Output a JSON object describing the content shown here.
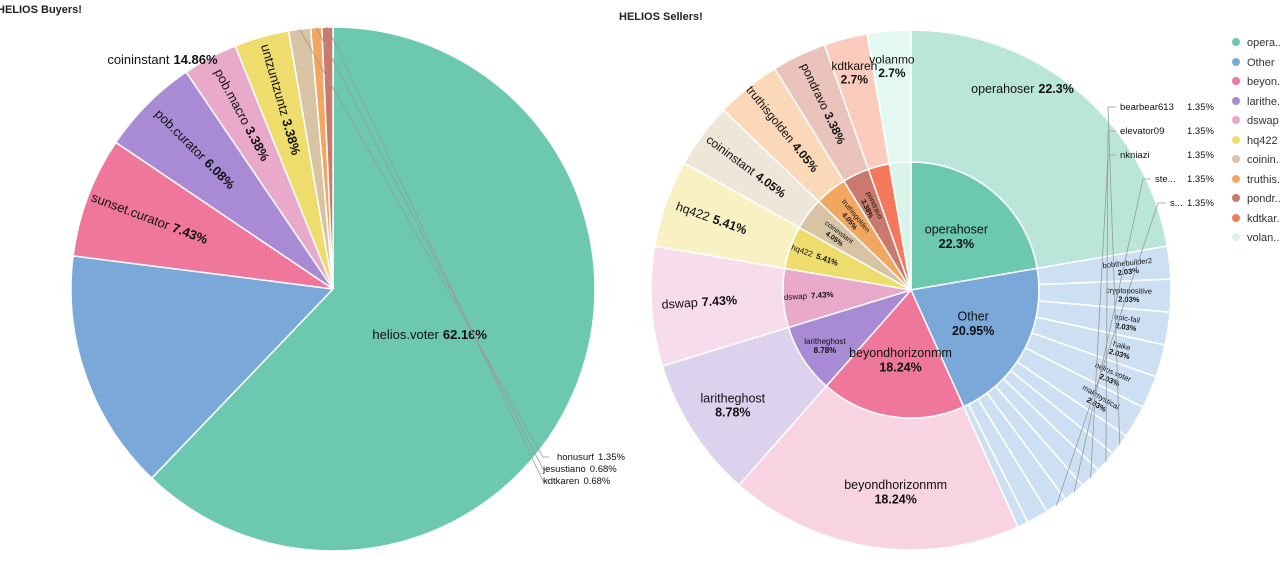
{
  "chart_data": [
    {
      "type": "pie",
      "title": "HELIOS Buyers!",
      "slices": [
        {
          "label": "helios.voter",
          "value": 62.16,
          "color": "#6cc9b0"
        },
        {
          "label": "coininstant",
          "value": 14.86,
          "color": "#7aa8d9"
        },
        {
          "label": "sunset.curator",
          "value": 7.43,
          "color": "#ef779b"
        },
        {
          "label": "pob.curator",
          "value": 6.08,
          "color": "#a98bd5"
        },
        {
          "label": "pob.macro",
          "value": 3.38,
          "color": "#e8a9cb"
        },
        {
          "label": "untzuntzuntz",
          "value": 3.38,
          "color": "#eedc6c"
        },
        {
          "label": "honusurf",
          "value": 1.35,
          "color": "#d8c3a4"
        },
        {
          "label": "jesustiano",
          "value": 0.68,
          "color": "#f2a760"
        },
        {
          "label": "kdtkaren",
          "value": 0.68,
          "color": "#c97a6d"
        }
      ]
    },
    {
      "type": "sunburst",
      "title": "HELIOS Sellers!",
      "inner": [
        {
          "label": "operahoser",
          "value": 22.3,
          "color": "#6cc9b0"
        },
        {
          "label": "Other",
          "value": 20.95,
          "color": "#7aa8d9"
        },
        {
          "label": "beyondhorizonmm",
          "value": 18.24,
          "color": "#ef779b"
        },
        {
          "label": "laritheghost",
          "value": 8.78,
          "color": "#a98bd5"
        },
        {
          "label": "dswap",
          "value": 7.43,
          "color": "#e8a9cb"
        },
        {
          "label": "hq422",
          "value": 5.41,
          "color": "#eedc6c"
        },
        {
          "label": "coininstant",
          "value": 4.05,
          "color": "#d8c3a4"
        },
        {
          "label": "truthisgolden",
          "value": 4.05,
          "color": "#f2a760"
        },
        {
          "label": "pondravo",
          "value": 3.38,
          "color": "#c97a6d"
        },
        {
          "label": "kdtkaren",
          "value": 2.7,
          "color": "#f4795c"
        },
        {
          "label": "volanmo",
          "value": 2.7,
          "color": "#d9f5ea"
        }
      ],
      "outer": [
        {
          "label": "operahoser",
          "value": 22.3,
          "color": "#b9e6d9"
        },
        {
          "label": "bobthebuilder2",
          "value": 2.03,
          "color": "#cde0f3"
        },
        {
          "label": "cryptopositive",
          "value": 2.03,
          "color": "#cde0f3"
        },
        {
          "label": "epic-fail",
          "value": 2.03,
          "color": "#cde0f3"
        },
        {
          "label": "haike",
          "value": 2.03,
          "color": "#cde0f3"
        },
        {
          "label": "helios.voter",
          "value": 2.03,
          "color": "#cde0f3"
        },
        {
          "label": "makmystical",
          "value": 2.03,
          "color": "#cde0f3"
        },
        {
          "label": "bearbear613",
          "value": 1.35,
          "color": "#cde0f3"
        },
        {
          "label": "elevator09",
          "value": 1.35,
          "color": "#cde0f3"
        },
        {
          "label": "nkniazi",
          "value": 1.35,
          "color": "#cde0f3"
        },
        {
          "label": "ste...",
          "value": 1.35,
          "color": "#cde0f3"
        },
        {
          "label": "s...",
          "value": 1.35,
          "color": "#cde0f3"
        },
        {
          "label": "",
          "value": 1.35,
          "color": "#cde0f3"
        },
        {
          "label": "",
          "value": 0.67,
          "color": "#cde0f3"
        },
        {
          "label": "beyondhorizonmm",
          "value": 18.24,
          "color": "#f8d3e1"
        },
        {
          "label": "laritheghost",
          "value": 8.78,
          "color": "#ddd2ee"
        },
        {
          "label": "dswap",
          "value": 7.43,
          "color": "#f7dceb"
        },
        {
          "label": "hq422",
          "value": 5.41,
          "color": "#f9f1c4"
        },
        {
          "label": "coininstant",
          "value": 4.05,
          "color": "#efe6da"
        },
        {
          "label": "truthisgolden",
          "value": 4.05,
          "color": "#fbd9b8"
        },
        {
          "label": "pondravo",
          "value": 3.38,
          "color": "#e9c3bc"
        },
        {
          "label": "kdtkaren",
          "value": 2.7,
          "color": "#fbcbbd"
        },
        {
          "label": "volanmo",
          "value": 2.7,
          "color": "#e3f8f0"
        }
      ],
      "legend": [
        {
          "label": "opera...",
          "color": "#6cc9b0"
        },
        {
          "label": "Other",
          "color": "#7aa8d9"
        },
        {
          "label": "beyon...",
          "color": "#ef779b"
        },
        {
          "label": "larithe...",
          "color": "#a98bd5"
        },
        {
          "label": "dswap",
          "color": "#e8a9cb"
        },
        {
          "label": "hq422",
          "color": "#eedc6c"
        },
        {
          "label": "coinin...",
          "color": "#d8c3a4"
        },
        {
          "label": "truthis...",
          "color": "#f2a760"
        },
        {
          "label": "pondr...",
          "color": "#c97a6d"
        },
        {
          "label": "kdtkar...",
          "color": "#f4795c"
        },
        {
          "label": "volan...",
          "color": "#d9f5ea"
        }
      ],
      "legend_placement": "right"
    }
  ]
}
